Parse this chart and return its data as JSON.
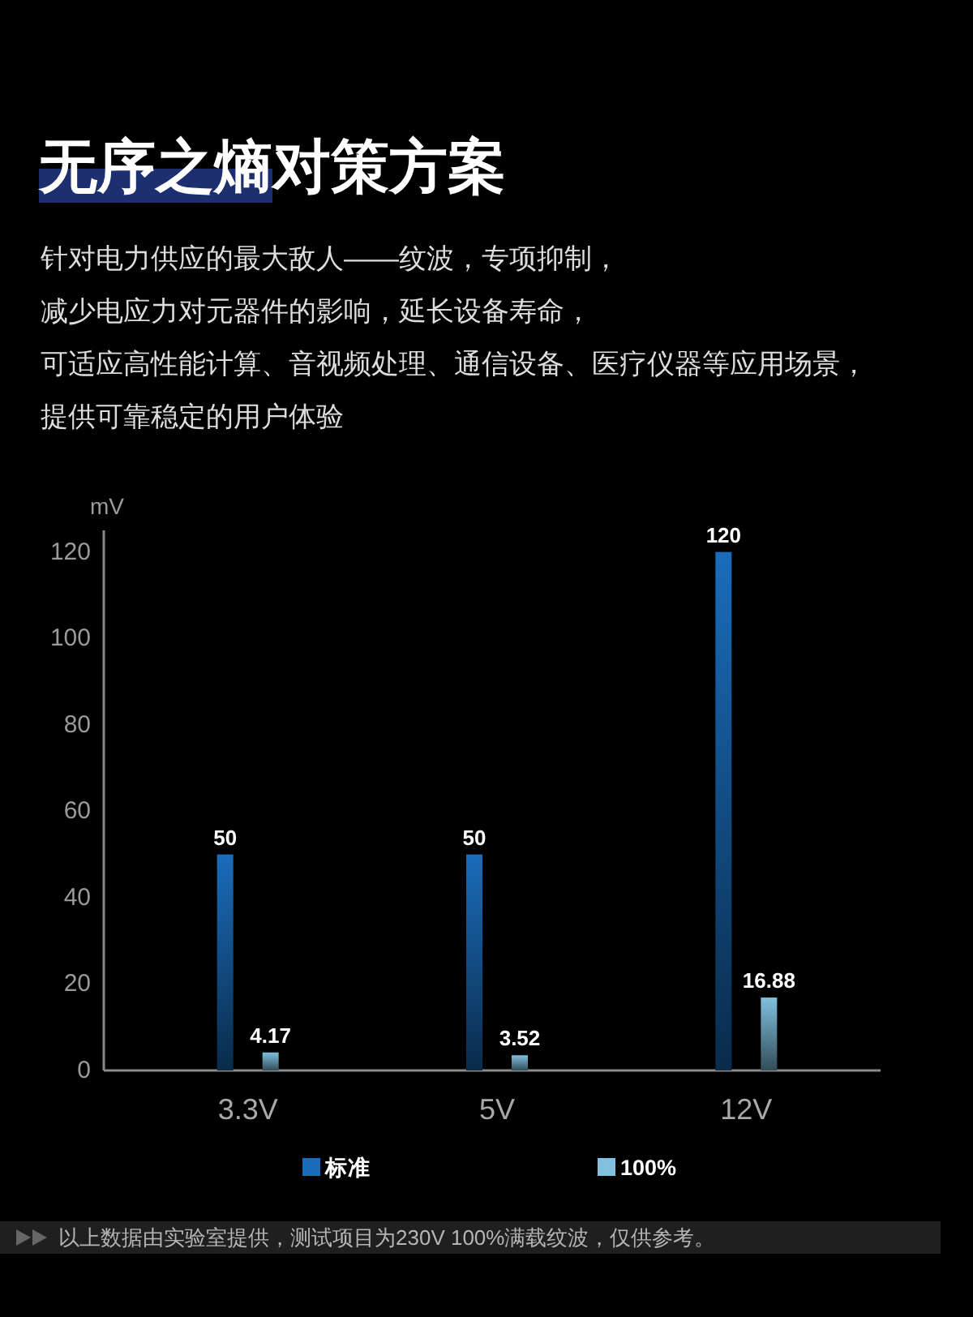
{
  "chart_data": {
    "type": "bar",
    "title": "无序之熵对策方案",
    "subtitle": "针对电力供应的最大敌人——纹波，专项抑制，减少电应力对元器件的影响，延长设备寿命，可适应高性能计算、音视频处理、通信设备、医疗仪器等应用场景，提供可靠稳定的用户体验",
    "ylabel": "mV",
    "categories": [
      "3.3V",
      "5V",
      "12V"
    ],
    "series": [
      {
        "name": "标准",
        "color": "#1a6cba",
        "values": [
          50,
          50,
          120
        ]
      },
      {
        "name": "100%",
        "color": "#80c0de",
        "values": [
          4.17,
          3.52,
          16.88
        ]
      }
    ],
    "ylim": [
      0,
      125
    ],
    "yticks": [
      0,
      20,
      40,
      60,
      80,
      100,
      120
    ],
    "data_labels": true,
    "legend": "bottom",
    "annotations": [
      "以上数据由实验室提供，测试项目为230V 100%满载纹波，仅供参考。"
    ]
  }
}
